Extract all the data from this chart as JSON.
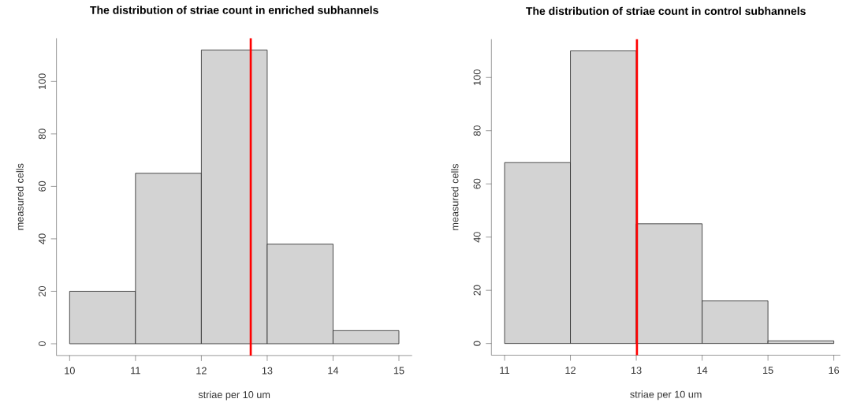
{
  "chart_data": [
    {
      "type": "histogram",
      "title": "The distribution of striae count in enriched subhannels",
      "xlabel": "striae per 10 um",
      "ylabel": "measured cells",
      "bins": [
        10,
        11,
        12,
        13,
        14,
        15
      ],
      "values": [
        20,
        65,
        112,
        38,
        5
      ],
      "color": "#d3d3d3",
      "xlim": [
        9.8,
        15.2
      ],
      "ylim": [
        -4.48,
        116.48
      ],
      "xticks": [
        10,
        11,
        12,
        13,
        14,
        15
      ],
      "yticks": [
        0,
        20,
        40,
        60,
        80,
        100
      ],
      "ref_lines": [
        {
          "axis": "x",
          "value": 12.75,
          "color": "#ff0000"
        }
      ]
    },
    {
      "type": "histogram",
      "title": "The distribution of striae count in control subhannels",
      "xlabel": "striae per 10 um",
      "ylabel": "measured cells",
      "bins": [
        11,
        12,
        13,
        14,
        15,
        16
      ],
      "values": [
        68,
        110,
        45,
        16,
        1
      ],
      "color": "#d3d3d3",
      "xlim": [
        10.8,
        16.1
      ],
      "ylim": [
        -4.4,
        114.4
      ],
      "xticks": [
        11,
        12,
        13,
        14,
        15,
        16
      ],
      "yticks": [
        0,
        20,
        40,
        60,
        80,
        100
      ],
      "ref_lines": [
        {
          "axis": "x",
          "value": 13.01,
          "color": "#ff0000"
        }
      ]
    }
  ]
}
